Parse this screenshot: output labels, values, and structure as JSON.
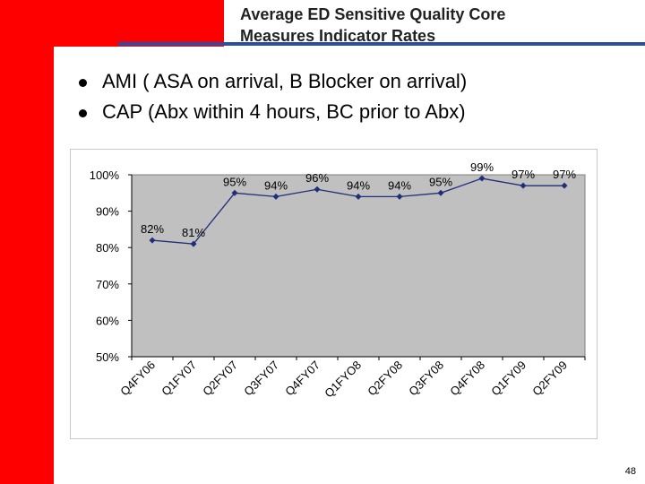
{
  "slide": {
    "title_lines": [
      "Average ED Sensitive Quality Core",
      "Measures Indicator Rates"
    ],
    "bullets": [
      "AMI ( ASA on arrival, B Blocker on arrival)",
      "CAP (Abx within 4 hours, BC prior to Abx)"
    ],
    "page_number": "48"
  },
  "colors": {
    "accent": "#ff0000",
    "rule": "#2b4ea0",
    "plot_bg": "#c0c0c0",
    "line": "#1f2f7a"
  },
  "chart_data": {
    "type": "line",
    "title": "",
    "xlabel": "",
    "ylabel": "",
    "categories": [
      "Q4FY06",
      "Q1FY07",
      "Q2FY07",
      "Q3FY07",
      "Q4FY07",
      "Q1FYO8",
      "Q2FY08",
      "Q3FY08",
      "Q4FY08",
      "Q1FY09",
      "Q2FY09"
    ],
    "values": [
      82,
      81,
      95,
      94,
      96,
      94,
      94,
      95,
      99,
      97,
      97
    ],
    "data_labels": [
      "82%",
      "81%",
      "95%",
      "94%",
      "96%",
      "94%",
      "94%",
      "95%",
      "99%",
      "97%",
      "97%"
    ],
    "ylim": [
      50,
      100
    ],
    "yticks": [
      50,
      60,
      70,
      80,
      90,
      100
    ],
    "ytick_labels": [
      "50%",
      "60%",
      "70%",
      "80%",
      "90%",
      "100%"
    ],
    "grid": false,
    "legend": "none"
  }
}
